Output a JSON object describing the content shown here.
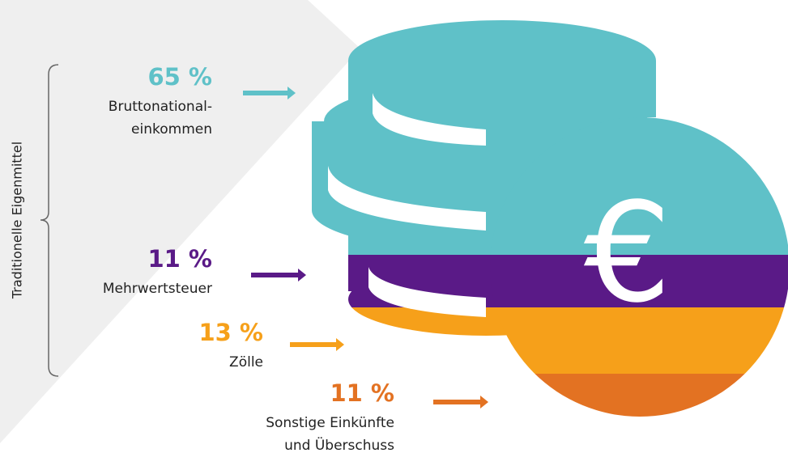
{
  "side_label": "Traditionelle Eigenmittel",
  "items": [
    {
      "percent": "65 %",
      "lines": [
        "Bruttonational-",
        "einkommen"
      ]
    },
    {
      "percent": "11 %",
      "lines": [
        "Mehrwertsteuer"
      ]
    },
    {
      "percent": "13 %",
      "lines": [
        "Zölle"
      ]
    },
    {
      "percent": "11 %",
      "lines": [
        "Sonstige Einkünfte",
        "und Überschuss"
      ]
    }
  ],
  "symbol": "€"
}
